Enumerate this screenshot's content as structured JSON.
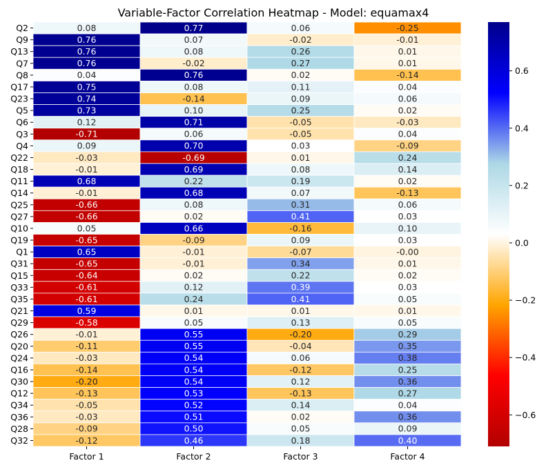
{
  "chart_data": {
    "type": "heatmap",
    "title": "Variable-Factor Correlation Heatmap - Model: equamax4",
    "xlabel": "",
    "ylabel": "",
    "columns": [
      "Factor 1",
      "Factor 2",
      "Factor 3",
      "Factor 4"
    ],
    "rows": [
      "Q2",
      "Q9",
      "Q13",
      "Q7",
      "Q8",
      "Q17",
      "Q23",
      "Q5",
      "Q6",
      "Q3",
      "Q4",
      "Q22",
      "Q18",
      "Q11",
      "Q14",
      "Q25",
      "Q27",
      "Q10",
      "Q19",
      "Q1",
      "Q31",
      "Q15",
      "Q33",
      "Q35",
      "Q21",
      "Q29",
      "Q26",
      "Q20",
      "Q24",
      "Q16",
      "Q30",
      "Q12",
      "Q34",
      "Q36",
      "Q28",
      "Q32"
    ],
    "values": [
      [
        0.08,
        0.77,
        0.06,
        -0.25
      ],
      [
        0.76,
        0.07,
        -0.02,
        -0.01
      ],
      [
        0.76,
        0.08,
        0.26,
        0.01
      ],
      [
        0.76,
        -0.02,
        0.27,
        0.01
      ],
      [
        0.04,
        0.76,
        0.02,
        -0.14
      ],
      [
        0.75,
        0.08,
        0.11,
        0.04
      ],
      [
        0.74,
        -0.14,
        0.09,
        0.06
      ],
      [
        0.73,
        0.1,
        0.25,
        0.02
      ],
      [
        0.12,
        0.71,
        -0.05,
        -0.03
      ],
      [
        -0.71,
        0.06,
        -0.05,
        0.04
      ],
      [
        0.09,
        0.7,
        0.03,
        -0.09
      ],
      [
        -0.03,
        -0.69,
        0.01,
        0.24
      ],
      [
        -0.01,
        0.69,
        0.08,
        0.14
      ],
      [
        0.68,
        0.22,
        0.19,
        0.02
      ],
      [
        -0.01,
        0.68,
        0.07,
        -0.13
      ],
      [
        -0.66,
        0.08,
        0.31,
        0.06
      ],
      [
        -0.66,
        0.02,
        0.41,
        0.03
      ],
      [
        0.05,
        0.66,
        -0.16,
        0.1
      ],
      [
        -0.65,
        -0.09,
        0.09,
        0.03
      ],
      [
        0.65,
        -0.01,
        -0.07,
        -0.001
      ],
      [
        -0.65,
        -0.01,
        0.34,
        0.01
      ],
      [
        -0.64,
        0.02,
        0.22,
        0.02
      ],
      [
        -0.61,
        0.12,
        0.39,
        0.03
      ],
      [
        -0.61,
        0.24,
        0.41,
        0.05
      ],
      [
        0.59,
        0.01,
        0.01,
        0.01
      ],
      [
        -0.58,
        0.05,
        0.13,
        0.05
      ],
      [
        -0.01,
        0.55,
        -0.2,
        0.29
      ],
      [
        -0.11,
        0.55,
        -0.04,
        0.35
      ],
      [
        -0.03,
        0.54,
        0.06,
        0.38
      ],
      [
        -0.14,
        0.54,
        -0.12,
        0.25
      ],
      [
        -0.2,
        0.54,
        0.12,
        0.36
      ],
      [
        -0.13,
        0.53,
        -0.13,
        0.27
      ],
      [
        -0.05,
        0.52,
        0.14,
        0.04
      ],
      [
        -0.03,
        0.51,
        0.02,
        0.36
      ],
      [
        -0.09,
        0.5,
        0.05,
        0.09
      ],
      [
        -0.12,
        0.46,
        0.18,
        0.4
      ]
    ],
    "cell_labels": [
      [
        "0.08",
        "0.77",
        "0.06",
        "-0.25"
      ],
      [
        "0.76",
        "0.07",
        "-0.02",
        "-0.01"
      ],
      [
        "0.76",
        "0.08",
        "0.26",
        "0.01"
      ],
      [
        "0.76",
        "-0.02",
        "0.27",
        "0.01"
      ],
      [
        "0.04",
        "0.76",
        "0.02",
        "-0.14"
      ],
      [
        "0.75",
        "0.08",
        "0.11",
        "0.04"
      ],
      [
        "0.74",
        "-0.14",
        "0.09",
        "0.06"
      ],
      [
        "0.73",
        "0.10",
        "0.25",
        "0.02"
      ],
      [
        "0.12",
        "0.71",
        "-0.05",
        "-0.03"
      ],
      [
        "-0.71",
        "0.06",
        "-0.05",
        "0.04"
      ],
      [
        "0.09",
        "0.70",
        "0.03",
        "-0.09"
      ],
      [
        "-0.03",
        "-0.69",
        "0.01",
        "0.24"
      ],
      [
        "-0.01",
        "0.69",
        "0.08",
        "0.14"
      ],
      [
        "0.68",
        "0.22",
        "0.19",
        "0.02"
      ],
      [
        "-0.01",
        "0.68",
        "0.07",
        "-0.13"
      ],
      [
        "-0.66",
        "0.08",
        "0.31",
        "0.06"
      ],
      [
        "-0.66",
        "0.02",
        "0.41",
        "0.03"
      ],
      [
        "0.05",
        "0.66",
        "-0.16",
        "0.10"
      ],
      [
        "-0.65",
        "-0.09",
        "0.09",
        "0.03"
      ],
      [
        "0.65",
        "-0.01",
        "-0.07",
        "-0.00"
      ],
      [
        "-0.65",
        "-0.01",
        "0.34",
        "0.01"
      ],
      [
        "-0.64",
        "0.02",
        "0.22",
        "0.02"
      ],
      [
        "-0.61",
        "0.12",
        "0.39",
        "0.03"
      ],
      [
        "-0.61",
        "0.24",
        "0.41",
        "0.05"
      ],
      [
        "0.59",
        "0.01",
        "0.01",
        "0.01"
      ],
      [
        "-0.58",
        "0.05",
        "0.13",
        "0.05"
      ],
      [
        "-0.01",
        "0.55",
        "-0.20",
        "0.29"
      ],
      [
        "-0.11",
        "0.55",
        "-0.04",
        "0.35"
      ],
      [
        "-0.03",
        "0.54",
        "0.06",
        "0.38"
      ],
      [
        "-0.14",
        "0.54",
        "-0.12",
        "0.25"
      ],
      [
        "-0.20",
        "0.54",
        "0.12",
        "0.36"
      ],
      [
        "-0.13",
        "0.53",
        "-0.13",
        "0.27"
      ],
      [
        "-0.05",
        "0.52",
        "0.14",
        "0.04"
      ],
      [
        "-0.03",
        "0.51",
        "0.02",
        "0.36"
      ],
      [
        "-0.09",
        "0.50",
        "0.05",
        "0.09"
      ],
      [
        "-0.12",
        "0.46",
        "0.18",
        "0.40"
      ]
    ],
    "vmin": -0.71,
    "vmax": 0.77,
    "colorbar_ticks": [
      -0.6,
      -0.4,
      -0.2,
      0.0,
      0.2,
      0.4,
      0.6
    ],
    "colorbar_tick_labels": [
      "−0.6",
      "−0.4",
      "−0.2",
      "0.0",
      "0.2",
      "0.4",
      "0.6"
    ],
    "colormap": [
      "#b30000",
      "#ff0000",
      "#ffa500",
      "#ffffff",
      "#add8e6",
      "#0000ff",
      "#00008b"
    ],
    "grid_color": "#ffffff",
    "legend_position": "right"
  }
}
